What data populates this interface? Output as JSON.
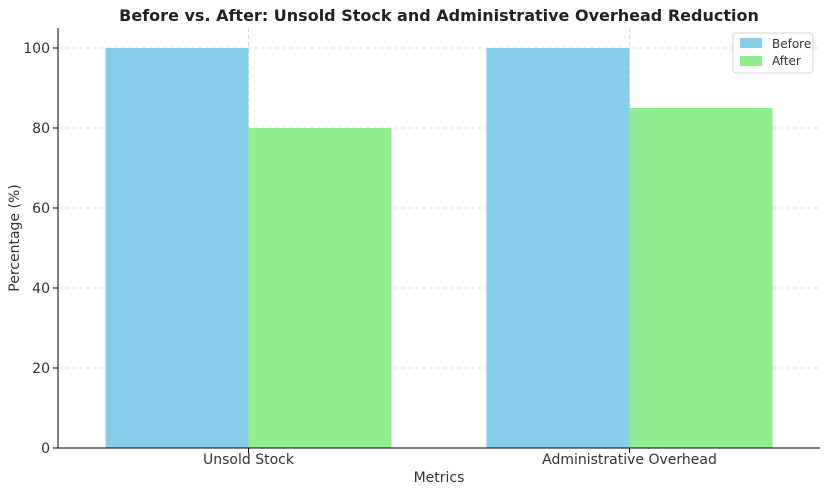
{
  "chart_data": {
    "type": "bar",
    "title": "Before vs. After: Unsold Stock and Administrative Overhead Reduction",
    "xlabel": "Metrics",
    "ylabel": "Percentage (%)",
    "categories": [
      "Unsold Stock",
      "Administrative Overhead"
    ],
    "series": [
      {
        "name": "Before",
        "values": [
          100,
          100
        ],
        "color": "#87ceeb"
      },
      {
        "name": "After",
        "values": [
          80,
          85
        ],
        "color": "#90ee90"
      }
    ],
    "ylim": [
      0,
      105
    ],
    "yticks": [
      "0",
      "20",
      "40",
      "60",
      "80",
      "100"
    ],
    "grid": true,
    "legend_position": "top-right"
  }
}
